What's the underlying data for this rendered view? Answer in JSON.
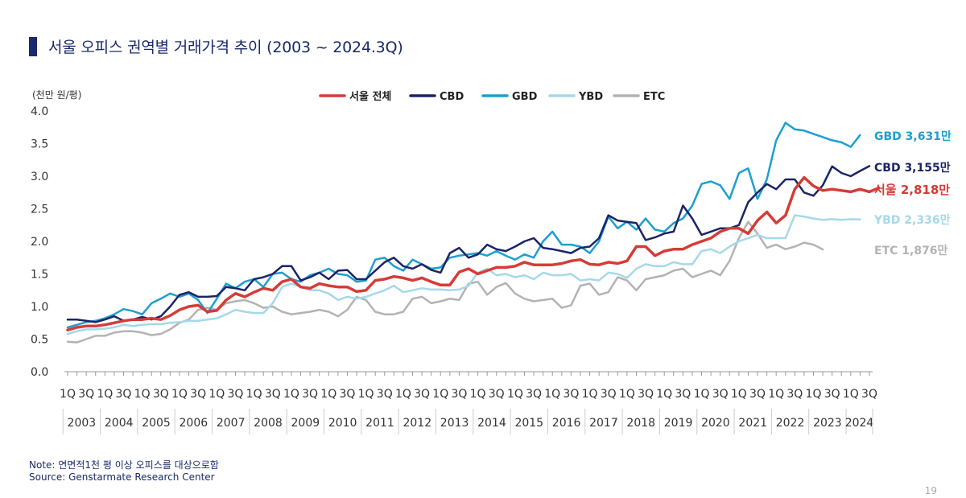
{
  "title": "서울 오피스 권역별 거래가격 추이 (2003 ~ 2024.3Q)",
  "note": "Note: 연면적1천 평 이상 오피스를 대상으로함",
  "source": "Source: Genstarmate Research Center",
  "page_number": "19",
  "chart_data": {
    "type": "line",
    "unit_label": "(천만 원/평)",
    "ylim": [
      0,
      4.0
    ],
    "y_ticks": [
      "0.0",
      "0.5",
      "1.0",
      "1.5",
      "2.0",
      "2.5",
      "3.0",
      "3.5",
      "4.0"
    ],
    "legend_position": "top-center",
    "quarter_labels": [
      "1Q",
      "3Q"
    ],
    "years": [
      "2003",
      "2004",
      "2005",
      "2006",
      "2007",
      "2008",
      "2009",
      "2010",
      "2011",
      "2012",
      "2013",
      "2014",
      "2015",
      "2016",
      "2017",
      "2018",
      "2019",
      "2020",
      "2021",
      "2022",
      "2023",
      "2024"
    ],
    "series": [
      {
        "name": "서울 전체",
        "color": "#d63b36",
        "end_label": "서울 2,818만",
        "values": [
          0.64,
          0.68,
          0.7,
          0.7,
          0.72,
          0.75,
          0.78,
          0.8,
          0.8,
          0.82,
          0.8,
          0.86,
          0.95,
          1.0,
          1.02,
          0.92,
          0.94,
          1.1,
          1.2,
          1.15,
          1.22,
          1.28,
          1.25,
          1.38,
          1.42,
          1.3,
          1.28,
          1.35,
          1.32,
          1.3,
          1.3,
          1.23,
          1.25,
          1.4,
          1.42,
          1.46,
          1.44,
          1.4,
          1.44,
          1.38,
          1.33,
          1.33,
          1.53,
          1.58,
          1.5,
          1.55,
          1.6,
          1.6,
          1.62,
          1.68,
          1.64,
          1.64,
          1.64,
          1.66,
          1.7,
          1.72,
          1.65,
          1.64,
          1.68,
          1.66,
          1.7,
          1.92,
          1.92,
          1.78,
          1.85,
          1.88,
          1.88,
          1.95,
          2.0,
          2.05,
          2.15,
          2.2,
          2.2,
          2.12,
          2.32,
          2.45,
          2.28,
          2.4,
          2.8,
          2.98,
          2.85,
          2.78,
          2.8,
          2.78,
          2.76,
          2.8,
          2.76,
          2.82
        ]
      },
      {
        "name": "CBD",
        "color": "#1b2466",
        "end_label": "CBD 3,155만",
        "values": [
          0.8,
          0.8,
          0.78,
          0.76,
          0.8,
          0.85,
          0.78,
          0.8,
          0.84,
          0.8,
          0.85,
          1.0,
          1.18,
          1.22,
          1.15,
          1.15,
          1.16,
          1.3,
          1.28,
          1.25,
          1.42,
          1.45,
          1.5,
          1.62,
          1.62,
          1.4,
          1.45,
          1.52,
          1.42,
          1.55,
          1.56,
          1.42,
          1.42,
          1.55,
          1.68,
          1.75,
          1.62,
          1.58,
          1.65,
          1.56,
          1.52,
          1.82,
          1.9,
          1.75,
          1.8,
          1.95,
          1.88,
          1.85,
          1.92,
          2.0,
          2.05,
          1.9,
          1.88,
          1.85,
          1.82,
          1.9,
          1.92,
          2.05,
          2.4,
          2.32,
          2.3,
          2.28,
          2.02,
          2.06,
          2.12,
          2.15,
          2.55,
          2.35,
          2.1,
          2.15,
          2.2,
          2.2,
          2.25,
          2.6,
          2.75,
          2.88,
          2.8,
          2.95,
          2.95,
          2.75,
          2.7,
          2.86,
          3.15,
          3.05,
          3.0,
          3.08,
          3.155
        ]
      },
      {
        "name": "GBD",
        "color": "#1d9fd0",
        "end_label": "GBD 3,631만",
        "values": [
          0.68,
          0.72,
          0.76,
          0.78,
          0.82,
          0.88,
          0.96,
          0.93,
          0.88,
          1.05,
          1.12,
          1.2,
          1.15,
          1.2,
          1.1,
          0.9,
          1.12,
          1.35,
          1.28,
          1.38,
          1.42,
          1.3,
          1.5,
          1.52,
          1.42,
          1.38,
          1.48,
          1.52,
          1.58,
          1.5,
          1.48,
          1.38,
          1.4,
          1.72,
          1.75,
          1.62,
          1.55,
          1.72,
          1.65,
          1.58,
          1.6,
          1.75,
          1.78,
          1.8,
          1.82,
          1.78,
          1.85,
          1.78,
          1.72,
          1.8,
          1.75,
          2.0,
          2.15,
          1.95,
          1.95,
          1.92,
          1.82,
          2.0,
          2.38,
          2.2,
          2.3,
          2.18,
          2.35,
          2.18,
          2.15,
          2.28,
          2.35,
          2.55,
          2.88,
          2.92,
          2.86,
          2.65,
          3.05,
          3.12,
          2.65,
          2.95,
          3.55,
          3.82,
          3.72,
          3.7,
          3.65,
          3.6,
          3.55,
          3.52,
          3.45,
          3.631
        ]
      },
      {
        "name": "YBD",
        "color": "#a6d8ea",
        "end_label": "YBD 2,336만",
        "values": [
          0.58,
          0.62,
          0.65,
          0.65,
          0.66,
          0.68,
          0.72,
          0.7,
          0.72,
          0.73,
          0.73,
          0.75,
          0.76,
          0.78,
          0.78,
          0.8,
          0.82,
          0.88,
          0.95,
          0.92,
          0.9,
          0.9,
          1.05,
          1.3,
          1.35,
          1.3,
          1.25,
          1.25,
          1.2,
          1.1,
          1.15,
          1.12,
          1.15,
          1.2,
          1.25,
          1.32,
          1.22,
          1.25,
          1.28,
          1.26,
          1.26,
          1.25,
          1.26,
          1.32,
          1.52,
          1.58,
          1.48,
          1.5,
          1.45,
          1.48,
          1.42,
          1.52,
          1.48,
          1.48,
          1.5,
          1.4,
          1.42,
          1.4,
          1.52,
          1.5,
          1.44,
          1.58,
          1.65,
          1.62,
          1.62,
          1.68,
          1.65,
          1.65,
          1.85,
          1.88,
          1.82,
          1.92,
          2.0,
          2.05,
          2.1,
          2.05,
          2.05,
          2.05,
          2.4,
          2.38,
          2.35,
          2.33,
          2.34,
          2.33,
          2.34,
          2.336
        ]
      },
      {
        "name": "ETC",
        "color": "#b3b3b3",
        "end_label": "ETC 1,876만",
        "values": [
          0.46,
          0.45,
          0.5,
          0.55,
          0.55,
          0.6,
          0.62,
          0.62,
          0.6,
          0.56,
          0.58,
          0.65,
          0.75,
          0.8,
          0.95,
          0.98,
          0.95,
          1.05,
          1.08,
          1.1,
          1.05,
          0.98,
          1.0,
          0.92,
          0.88,
          0.9,
          0.92,
          0.95,
          0.92,
          0.85,
          0.95,
          1.15,
          1.1,
          0.92,
          0.88,
          0.88,
          0.92,
          1.12,
          1.15,
          1.05,
          1.08,
          1.12,
          1.1,
          1.35,
          1.38,
          1.18,
          1.3,
          1.36,
          1.2,
          1.12,
          1.08,
          1.1,
          1.12,
          0.98,
          1.02,
          1.32,
          1.35,
          1.18,
          1.22,
          1.45,
          1.4,
          1.25,
          1.42,
          1.45,
          1.48,
          1.55,
          1.58,
          1.45,
          1.5,
          1.55,
          1.48,
          1.7,
          2.05,
          2.3,
          2.12,
          1.9,
          1.95,
          1.88,
          1.92,
          1.98,
          1.95,
          1.876
        ]
      }
    ]
  }
}
